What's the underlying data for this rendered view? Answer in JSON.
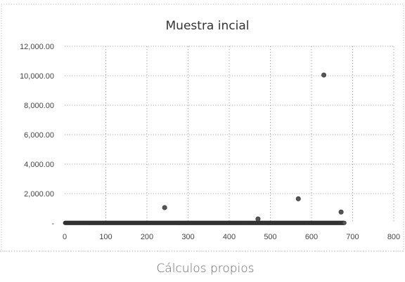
{
  "chart_data": {
    "type": "scatter",
    "title": "Muestra incial",
    "xlabel": "",
    "ylabel": "",
    "xlim": [
      0,
      800
    ],
    "ylim": [
      0,
      12000
    ],
    "x_ticks": [
      "0",
      "100",
      "200",
      "300",
      "400",
      "500",
      "600",
      "700",
      "800"
    ],
    "y_ticks": [
      "-",
      "2,000.00",
      "4,000.00",
      "6,000.00",
      "8,000.00",
      "10,000.00",
      "12,000.00"
    ],
    "grid": true,
    "legend": "none",
    "marker_color": "#555555",
    "cluster": {
      "x_start": 1,
      "x_end": 680,
      "y": 10,
      "count": 680
    },
    "outliers": [
      {
        "x": 243,
        "y": 1050
      },
      {
        "x": 470,
        "y": 280
      },
      {
        "x": 568,
        "y": 1650
      },
      {
        "x": 630,
        "y": 10050
      },
      {
        "x": 672,
        "y": 750
      }
    ]
  },
  "caption": "Cálculos propios"
}
